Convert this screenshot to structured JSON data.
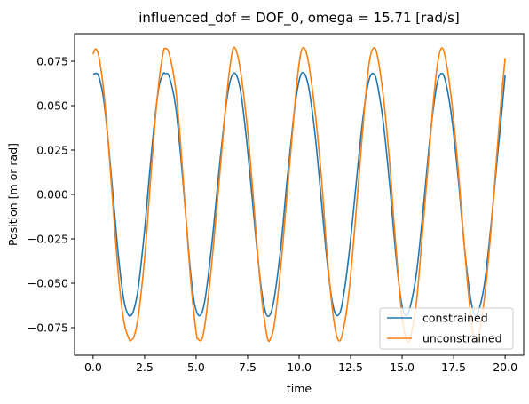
{
  "chart_data": {
    "type": "line",
    "title": "influenced_dof = DOF_0, omega = 15.71 [rad/s]",
    "xlabel": "time",
    "ylabel": "Position [m or rad]",
    "xlim": [
      -0.9,
      20.9
    ],
    "ylim": [
      -0.0905,
      0.0905
    ],
    "xticks": [
      0.0,
      2.5,
      5.0,
      7.5,
      10.0,
      12.5,
      15.0,
      17.5,
      20.0
    ],
    "xtick_labels": [
      "0.0",
      "2.5",
      "5.0",
      "7.5",
      "10.0",
      "12.5",
      "15.0",
      "17.5",
      "20.0"
    ],
    "yticks": [
      -0.075,
      -0.05,
      -0.025,
      0.0,
      0.025,
      0.05,
      0.075
    ],
    "ytick_labels": [
      "−0.075",
      "−0.050",
      "−0.025",
      "0.000",
      "0.025",
      "0.050",
      "0.075"
    ],
    "grid": false,
    "legend_position": "bottom-right",
    "series": [
      {
        "name": "constrained",
        "color": "#1f77b4",
        "x": [
          0.0,
          0.1,
          0.2,
          0.3,
          0.5,
          0.75,
          1.0,
          1.25,
          1.5,
          1.7,
          1.85,
          2.0,
          2.2,
          2.5,
          2.75,
          3.0,
          3.2,
          3.4,
          3.5,
          3.7,
          4.0,
          4.25,
          4.5,
          4.7,
          4.9,
          5.1,
          5.3,
          5.5,
          5.8,
          6.1,
          6.4,
          6.6,
          6.8,
          7.0,
          7.2,
          7.5,
          7.8,
          8.0,
          8.2,
          8.4,
          8.6,
          8.8,
          9.1,
          9.4,
          9.7,
          9.9,
          10.1,
          10.3,
          10.5,
          10.8,
          11.1,
          11.3,
          11.5,
          11.7,
          11.9,
          12.1,
          12.4,
          12.7,
          13.0,
          13.2,
          13.4,
          13.6,
          13.8,
          14.1,
          14.4,
          14.6,
          14.8,
          15.0,
          15.2,
          15.4,
          15.7,
          16.0,
          16.3,
          16.5,
          16.7,
          16.9,
          17.1,
          17.4,
          17.7,
          17.9,
          18.1,
          18.3,
          18.5,
          18.7,
          19.0,
          19.3,
          19.6,
          19.8,
          20.0
        ],
        "values": [
          0.0676,
          0.0681,
          0.068,
          0.0655,
          0.0545,
          0.028,
          -0.005,
          -0.037,
          -0.06,
          -0.0675,
          -0.068,
          -0.064,
          -0.052,
          -0.02,
          0.013,
          0.043,
          0.061,
          0.0678,
          0.0681,
          0.0662,
          0.05,
          0.022,
          -0.012,
          -0.04,
          -0.06,
          -0.0678,
          -0.066,
          -0.054,
          -0.024,
          0.012,
          0.045,
          0.061,
          0.068,
          0.066,
          0.055,
          0.025,
          -0.012,
          -0.036,
          -0.056,
          -0.0672,
          -0.0675,
          -0.058,
          -0.031,
          0.006,
          0.04,
          0.058,
          0.0678,
          0.0672,
          0.058,
          0.031,
          -0.006,
          -0.031,
          -0.052,
          -0.0652,
          -0.068,
          -0.061,
          -0.036,
          -0.002,
          0.033,
          0.052,
          0.0648,
          0.0681,
          0.062,
          0.039,
          0.005,
          -0.022,
          -0.046,
          -0.063,
          -0.0681,
          -0.063,
          -0.044,
          -0.011,
          0.026,
          0.047,
          0.0625,
          0.0681,
          0.064,
          0.044,
          0.012,
          -0.014,
          -0.038,
          -0.057,
          -0.0675,
          -0.066,
          -0.05,
          -0.019,
          0.018,
          0.042,
          0.0672
        ]
      },
      {
        "name": "unconstrained",
        "color": "#ff7f0e",
        "x": [
          0.0,
          0.1,
          0.2,
          0.3,
          0.5,
          0.75,
          1.0,
          1.25,
          1.5,
          1.75,
          1.85,
          2.0,
          2.2,
          2.5,
          2.75,
          3.0,
          3.2,
          3.4,
          3.5,
          3.7,
          4.0,
          4.25,
          4.5,
          4.75,
          5.0,
          5.1,
          5.3,
          5.5,
          5.8,
          6.1,
          6.4,
          6.6,
          6.8,
          7.0,
          7.2,
          7.5,
          7.8,
          8.0,
          8.2,
          8.4,
          8.5,
          8.6,
          8.8,
          9.1,
          9.4,
          9.7,
          9.9,
          10.1,
          10.3,
          10.5,
          10.8,
          11.1,
          11.3,
          11.5,
          11.7,
          11.9,
          12.1,
          12.4,
          12.7,
          13.0,
          13.2,
          13.4,
          13.6,
          13.8,
          14.1,
          14.4,
          14.6,
          14.8,
          15.0,
          15.2,
          15.4,
          15.7,
          16.0,
          16.3,
          16.5,
          16.7,
          16.9,
          17.1,
          17.4,
          17.7,
          17.9,
          18.1,
          18.3,
          18.5,
          18.7,
          19.0,
          19.3,
          19.6,
          19.8,
          20.0
        ],
        "values": [
          0.0789,
          0.0818,
          0.0808,
          0.0765,
          0.06,
          0.027,
          -0.012,
          -0.048,
          -0.072,
          -0.0815,
          -0.082,
          -0.0795,
          -0.068,
          -0.036,
          0.002,
          0.04,
          0.064,
          0.0798,
          0.0822,
          0.079,
          0.06,
          0.028,
          -0.012,
          -0.05,
          -0.0775,
          -0.0815,
          -0.081,
          -0.067,
          -0.034,
          0.005,
          0.045,
          0.068,
          0.0822,
          0.079,
          0.066,
          0.036,
          -0.005,
          -0.035,
          -0.06,
          -0.077,
          -0.0822,
          -0.0815,
          -0.073,
          -0.042,
          -0.002,
          0.038,
          0.064,
          0.0805,
          0.0815,
          0.071,
          0.044,
          0.007,
          -0.025,
          -0.052,
          -0.072,
          -0.082,
          -0.0785,
          -0.057,
          -0.019,
          0.024,
          0.052,
          0.074,
          0.0823,
          0.078,
          0.054,
          0.017,
          -0.015,
          -0.044,
          -0.069,
          -0.0815,
          -0.0805,
          -0.06,
          -0.02,
          0.022,
          0.05,
          0.072,
          0.0822,
          0.077,
          0.053,
          0.017,
          -0.012,
          -0.04,
          -0.065,
          -0.0818,
          -0.08,
          -0.058,
          -0.022,
          0.023,
          0.052,
          0.0768
        ]
      }
    ]
  }
}
